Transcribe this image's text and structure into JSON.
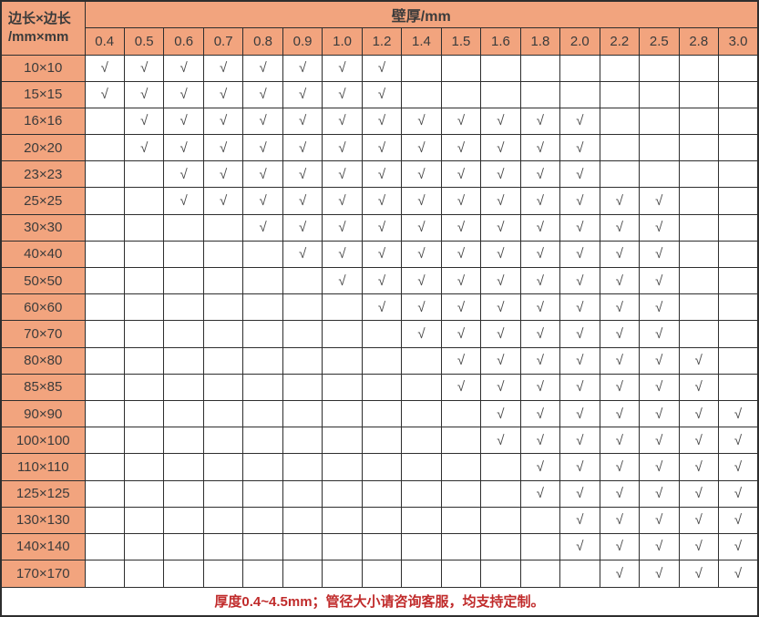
{
  "table": {
    "corner_header": {
      "line1": "边长×边长",
      "line2": "/mm×mm"
    },
    "col_group_header": "壁厚/mm",
    "thickness_columns": [
      "0.4",
      "0.5",
      "0.6",
      "0.7",
      "0.8",
      "0.9",
      "1.0",
      "1.2",
      "1.4",
      "1.5",
      "1.6",
      "1.8",
      "2.0",
      "2.2",
      "2.5",
      "2.8",
      "3.0"
    ],
    "check_mark": "√",
    "rows": [
      {
        "size": "10×10",
        "checks": [
          1,
          1,
          1,
          1,
          1,
          1,
          1,
          1,
          0,
          0,
          0,
          0,
          0,
          0,
          0,
          0,
          0
        ]
      },
      {
        "size": "15×15",
        "checks": [
          1,
          1,
          1,
          1,
          1,
          1,
          1,
          1,
          0,
          0,
          0,
          0,
          0,
          0,
          0,
          0,
          0
        ]
      },
      {
        "size": "16×16",
        "checks": [
          0,
          1,
          1,
          1,
          1,
          1,
          1,
          1,
          1,
          1,
          1,
          1,
          1,
          0,
          0,
          0,
          0
        ]
      },
      {
        "size": "20×20",
        "checks": [
          0,
          1,
          1,
          1,
          1,
          1,
          1,
          1,
          1,
          1,
          1,
          1,
          1,
          0,
          0,
          0,
          0
        ]
      },
      {
        "size": "23×23",
        "checks": [
          0,
          0,
          1,
          1,
          1,
          1,
          1,
          1,
          1,
          1,
          1,
          1,
          1,
          0,
          0,
          0,
          0
        ]
      },
      {
        "size": "25×25",
        "checks": [
          0,
          0,
          1,
          1,
          1,
          1,
          1,
          1,
          1,
          1,
          1,
          1,
          1,
          1,
          1,
          0,
          0
        ]
      },
      {
        "size": "30×30",
        "checks": [
          0,
          0,
          0,
          0,
          1,
          1,
          1,
          1,
          1,
          1,
          1,
          1,
          1,
          1,
          1,
          0,
          0
        ]
      },
      {
        "size": "40×40",
        "checks": [
          0,
          0,
          0,
          0,
          0,
          1,
          1,
          1,
          1,
          1,
          1,
          1,
          1,
          1,
          1,
          0,
          0
        ]
      },
      {
        "size": "50×50",
        "checks": [
          0,
          0,
          0,
          0,
          0,
          0,
          1,
          1,
          1,
          1,
          1,
          1,
          1,
          1,
          1,
          0,
          0
        ]
      },
      {
        "size": "60×60",
        "checks": [
          0,
          0,
          0,
          0,
          0,
          0,
          0,
          1,
          1,
          1,
          1,
          1,
          1,
          1,
          1,
          0,
          0
        ]
      },
      {
        "size": "70×70",
        "checks": [
          0,
          0,
          0,
          0,
          0,
          0,
          0,
          0,
          1,
          1,
          1,
          1,
          1,
          1,
          1,
          0,
          0
        ]
      },
      {
        "size": "80×80",
        "checks": [
          0,
          0,
          0,
          0,
          0,
          0,
          0,
          0,
          0,
          1,
          1,
          1,
          1,
          1,
          1,
          1,
          0
        ]
      },
      {
        "size": "85×85",
        "checks": [
          0,
          0,
          0,
          0,
          0,
          0,
          0,
          0,
          0,
          1,
          1,
          1,
          1,
          1,
          1,
          1,
          0
        ]
      },
      {
        "size": "90×90",
        "checks": [
          0,
          0,
          0,
          0,
          0,
          0,
          0,
          0,
          0,
          0,
          1,
          1,
          1,
          1,
          1,
          1,
          1
        ]
      },
      {
        "size": "100×100",
        "checks": [
          0,
          0,
          0,
          0,
          0,
          0,
          0,
          0,
          0,
          0,
          1,
          1,
          1,
          1,
          1,
          1,
          1
        ]
      },
      {
        "size": "110×110",
        "checks": [
          0,
          0,
          0,
          0,
          0,
          0,
          0,
          0,
          0,
          0,
          0,
          1,
          1,
          1,
          1,
          1,
          1
        ]
      },
      {
        "size": "125×125",
        "checks": [
          0,
          0,
          0,
          0,
          0,
          0,
          0,
          0,
          0,
          0,
          0,
          1,
          1,
          1,
          1,
          1,
          1
        ]
      },
      {
        "size": "130×130",
        "checks": [
          0,
          0,
          0,
          0,
          0,
          0,
          0,
          0,
          0,
          0,
          0,
          0,
          1,
          1,
          1,
          1,
          1
        ]
      },
      {
        "size": "140×140",
        "checks": [
          0,
          0,
          0,
          0,
          0,
          0,
          0,
          0,
          0,
          0,
          0,
          0,
          1,
          1,
          1,
          1,
          1
        ]
      },
      {
        "size": "170×170",
        "checks": [
          0,
          0,
          0,
          0,
          0,
          0,
          0,
          0,
          0,
          0,
          0,
          0,
          0,
          1,
          1,
          1,
          1
        ]
      }
    ],
    "footer_note": "厚度0.4~4.5mm；管径大小请咨询客服，均支持定制。"
  },
  "colors": {
    "header_bg": "#F2A47E",
    "grid_border": "#2E2E2E",
    "text_dark": "#3B3B3B",
    "check": "#4A4A4A",
    "footer_red": "#C02B2B",
    "cell_bg": "#FFFFFF"
  }
}
